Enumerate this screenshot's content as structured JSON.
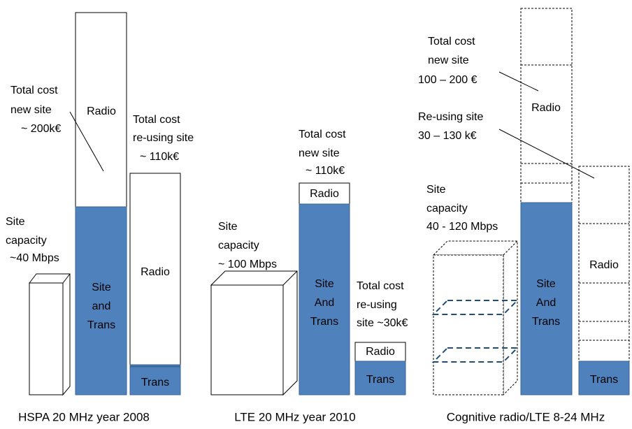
{
  "groups": [
    {
      "caption": "HSPA 20 MHz year 2008",
      "capacity": [
        "Site",
        "capacity",
        "~40 Mbps"
      ],
      "new_site_cost": [
        "Total cost",
        "new site",
        "~ 200k€"
      ],
      "reuse_cost": [
        "Total cost",
        "re-using site",
        "~ 110k€"
      ],
      "new_site_bar": {
        "top": "Radio",
        "bottom": [
          "Site",
          "and",
          "Trans"
        ]
      },
      "reuse_bar": {
        "top": "Radio",
        "bottom": "Trans"
      }
    },
    {
      "caption": "LTE 20 MHz year 2010",
      "capacity": [
        "Site",
        "capacity",
        "~ 100 Mbps"
      ],
      "new_site_cost": [
        "Total cost",
        "new site",
        "~ 110k€"
      ],
      "reuse_cost": [
        "Total cost",
        "re-using",
        "site ~30k€"
      ],
      "new_site_bar": {
        "top": "Radio",
        "bottom": [
          "Site",
          "And",
          "Trans"
        ]
      },
      "reuse_bar": {
        "top": "Radio",
        "bottom": "Trans"
      }
    },
    {
      "caption": "Cognitive radio/LTE 8-24 MHz",
      "capacity": [
        "Site",
        "capacity",
        "40 - 120 Mbps"
      ],
      "new_site_cost": [
        "Total cost",
        "new site",
        "100 – 200 €"
      ],
      "reuse_cost": [
        "Re-using site",
        "30 – 130 k€"
      ],
      "new_site_bar": {
        "top": "Radio",
        "bottom": [
          "Site",
          "And",
          "Trans"
        ]
      },
      "reuse_bar": {
        "top": "Radio",
        "bottom": "Trans"
      }
    }
  ]
}
